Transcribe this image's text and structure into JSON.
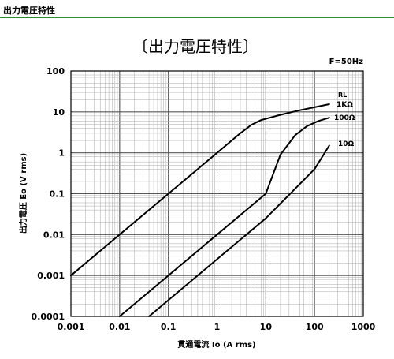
{
  "header": {
    "title": "出力電圧特性"
  },
  "chart_data": {
    "type": "line",
    "title": "〔出力電圧特性〕",
    "annotation": "F=50Hz",
    "xlabel": "貫通電流 Io (A rms)",
    "ylabel": "出力電圧 Eo (V rms)",
    "xscale": "log",
    "yscale": "log",
    "xlim": [
      0.001,
      1000
    ],
    "ylim": [
      0.0001,
      100
    ],
    "grid": true,
    "xticks": [
      "0.001",
      "0.01",
      "0.1",
      "1",
      "10",
      "100",
      "1000"
    ],
    "yticks": [
      "0.0001",
      "0.001",
      "0.01",
      "0.1",
      "1",
      "10",
      "100"
    ],
    "legend_title": "RL",
    "series": [
      {
        "name": "1KΩ",
        "x": [
          0.001,
          0.01,
          0.1,
          1,
          3,
          5,
          8,
          20,
          50,
          100,
          200
        ],
        "y": [
          0.001,
          0.01,
          0.1,
          1,
          3,
          4.8,
          6.3,
          8.5,
          11,
          13,
          15.5
        ]
      },
      {
        "name": "100Ω",
        "x": [
          0.01,
          0.1,
          1,
          10,
          20,
          40,
          70,
          120,
          200
        ],
        "y": [
          0.0001,
          0.001,
          0.01,
          0.1,
          0.9,
          2.7,
          4.5,
          6,
          7.2
        ]
      },
      {
        "name": "10Ω",
        "x": [
          0.04,
          0.1,
          1,
          10,
          100,
          200
        ],
        "y": [
          0.0001,
          0.00025,
          0.0025,
          0.025,
          0.4,
          1.5
        ]
      }
    ]
  }
}
